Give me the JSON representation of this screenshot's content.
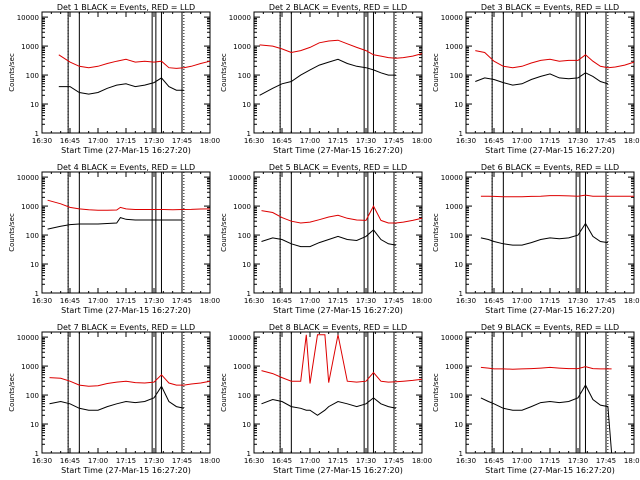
{
  "figure": {
    "xlabel": "Start Time (27-Mar-15 16:27:20)",
    "ylabel": "Counts/sec",
    "x_ticks": [
      "16:30",
      "16:45",
      "17:00",
      "17:15",
      "17:30",
      "17:45",
      "18:00"
    ],
    "y_ticks": [
      "1",
      "10",
      "100",
      "1000",
      "10000"
    ],
    "colors": {
      "events": "#000000",
      "lld": "#dd0000",
      "axes": "#000000"
    }
  },
  "chart_data": [
    {
      "type": "line",
      "title": "Det  1 BLACK = Events, RED = LLD",
      "xlabel": "Start Time (27-Mar-15 16:27:20)",
      "ylabel": "Counts/sec",
      "ylog": true,
      "ylim": [
        1,
        15000
      ],
      "xlim": [
        "16:30",
        "18:00"
      ],
      "x": [
        "16:39",
        "16:45",
        "16:50",
        "16:55",
        "17:00",
        "17:05",
        "17:10",
        "17:15",
        "17:20",
        "17:25",
        "17:30",
        "17:34",
        "17:38",
        "17:42",
        "17:46",
        "17:50",
        "17:55",
        "18:00"
      ],
      "series": [
        {
          "name": "BLACK = Events",
          "values": [
            40,
            40,
            25,
            22,
            25,
            35,
            45,
            50,
            40,
            45,
            55,
            80,
            40,
            30,
            30,
            null,
            null,
            null
          ]
        },
        {
          "name": "RED = LLD",
          "values": [
            500,
            280,
            200,
            180,
            200,
            250,
            300,
            350,
            280,
            300,
            280,
            300,
            180,
            170,
            180,
            200,
            250,
            300
          ]
        }
      ],
      "vlines": [
        "16:44",
        "16:50",
        "17:29",
        "17:31",
        "17:34",
        "17:45"
      ]
    },
    {
      "type": "line",
      "title": "Det  2 BLACK = Events, RED = LLD",
      "xlabel": "Start Time (27-Mar-15 16:27:20)",
      "ylabel": "Counts/sec",
      "ylog": true,
      "ylim": [
        1,
        15000
      ],
      "xlim": [
        "16:30",
        "18:00"
      ],
      "x": [
        "16:33",
        "16:40",
        "16:45",
        "16:50",
        "16:55",
        "17:00",
        "17:05",
        "17:10",
        "17:15",
        "17:20",
        "17:25",
        "17:30",
        "17:34",
        "17:38",
        "17:42",
        "17:46",
        "17:50",
        "17:55",
        "18:00"
      ],
      "series": [
        {
          "name": "BLACK = Events",
          "values": [
            20,
            35,
            50,
            60,
            100,
            150,
            220,
            280,
            350,
            250,
            200,
            180,
            150,
            120,
            100,
            100,
            null,
            null,
            null
          ]
        },
        {
          "name": "RED = LLD",
          "values": [
            1100,
            1000,
            800,
            600,
            700,
            900,
            1300,
            1500,
            1600,
            1200,
            900,
            700,
            500,
            450,
            400,
            380,
            400,
            450,
            550
          ]
        }
      ],
      "vlines": [
        "16:44",
        "16:50",
        "17:29",
        "17:31",
        "17:34",
        "17:45"
      ]
    },
    {
      "type": "line",
      "title": "Det  3 BLACK = Events, RED = LLD",
      "xlabel": "Start Time (27-Mar-15 16:27:20)",
      "ylabel": "Counts/sec",
      "ylog": true,
      "ylim": [
        1,
        15000
      ],
      "xlim": [
        "16:30",
        "18:00"
      ],
      "x": [
        "16:35",
        "16:40",
        "16:45",
        "16:50",
        "16:55",
        "17:00",
        "17:05",
        "17:10",
        "17:15",
        "17:20",
        "17:25",
        "17:30",
        "17:34",
        "17:38",
        "17:42",
        "17:46",
        "17:50",
        "17:55",
        "18:00"
      ],
      "series": [
        {
          "name": "BLACK = Events",
          "values": [
            60,
            80,
            70,
            55,
            45,
            50,
            70,
            90,
            110,
            80,
            75,
            80,
            120,
            90,
            60,
            50,
            null,
            null,
            null
          ]
        },
        {
          "name": "RED = LLD",
          "values": [
            700,
            600,
            300,
            200,
            180,
            200,
            260,
            320,
            350,
            300,
            320,
            320,
            500,
            300,
            200,
            180,
            190,
            220,
            280
          ]
        }
      ],
      "vlines": [
        "16:44",
        "16:50",
        "17:29",
        "17:31",
        "17:34",
        "17:45"
      ]
    },
    {
      "type": "line",
      "title": "Det  4 BLACK = Events, RED = LLD",
      "xlabel": "Start Time (27-Mar-15 16:27:20)",
      "ylabel": "Counts/sec",
      "ylog": true,
      "ylim": [
        1,
        15000
      ],
      "xlim": [
        "16:30",
        "18:00"
      ],
      "x": [
        "16:33",
        "16:40",
        "16:45",
        "16:50",
        "16:55",
        "17:00",
        "17:05",
        "17:10",
        "17:12",
        "17:15",
        "17:20",
        "17:25",
        "17:30",
        "17:35",
        "17:40",
        "17:45",
        "17:50",
        "17:55",
        "18:00"
      ],
      "series": [
        {
          "name": "BLACK = Events",
          "values": [
            160,
            200,
            230,
            240,
            240,
            240,
            250,
            260,
            400,
            350,
            330,
            330,
            330,
            330,
            330,
            330,
            null,
            null,
            null
          ]
        },
        {
          "name": "RED = LLD",
          "values": [
            1600,
            1200,
            900,
            800,
            750,
            720,
            720,
            730,
            900,
            800,
            760,
            760,
            760,
            760,
            750,
            760,
            770,
            790,
            800
          ]
        }
      ],
      "vlines": [
        "16:44",
        "16:50",
        "17:29",
        "17:31",
        "17:34",
        "17:45"
      ]
    },
    {
      "type": "line",
      "title": "Det  5 BLACK = Events, RED = LLD",
      "xlabel": "Start Time (27-Mar-15 16:27:20)",
      "ylabel": "Counts/sec",
      "ylog": true,
      "ylim": [
        1,
        15000
      ],
      "xlim": [
        "16:30",
        "18:00"
      ],
      "x": [
        "16:34",
        "16:40",
        "16:45",
        "16:50",
        "16:55",
        "17:00",
        "17:05",
        "17:10",
        "17:15",
        "17:20",
        "17:25",
        "17:30",
        "17:34",
        "17:38",
        "17:42",
        "17:46",
        "17:50",
        "17:55",
        "18:00"
      ],
      "series": [
        {
          "name": "BLACK = Events",
          "values": [
            60,
            80,
            70,
            50,
            40,
            40,
            55,
            70,
            90,
            70,
            65,
            90,
            150,
            70,
            50,
            45,
            null,
            null,
            null
          ]
        },
        {
          "name": "RED = LLD",
          "values": [
            700,
            600,
            400,
            300,
            260,
            280,
            340,
            420,
            480,
            380,
            330,
            320,
            1000,
            320,
            260,
            260,
            280,
            320,
            380
          ]
        }
      ],
      "vlines": [
        "16:44",
        "16:50",
        "17:29",
        "17:31",
        "17:34",
        "17:45"
      ]
    },
    {
      "type": "line",
      "title": "Det  6 BLACK = Events, RED = LLD",
      "xlabel": "Start Time (27-Mar-15 16:27:20)",
      "ylabel": "Counts/sec",
      "ylog": true,
      "ylim": [
        1,
        15000
      ],
      "xlim": [
        "16:30",
        "18:00"
      ],
      "x": [
        "16:38",
        "16:42",
        "16:45",
        "16:50",
        "16:55",
        "17:00",
        "17:05",
        "17:10",
        "17:15",
        "17:20",
        "17:25",
        "17:30",
        "17:34",
        "17:38",
        "17:42",
        "17:46",
        "17:50",
        "17:55",
        "18:00"
      ],
      "series": [
        {
          "name": "BLACK = Events",
          "values": [
            80,
            70,
            60,
            50,
            45,
            45,
            55,
            70,
            80,
            75,
            80,
            100,
            250,
            90,
            60,
            55,
            null,
            null,
            null
          ]
        },
        {
          "name": "RED = LLD",
          "values": [
            2200,
            2200,
            2150,
            2100,
            2100,
            2100,
            2150,
            2200,
            2300,
            2300,
            2250,
            2200,
            2400,
            2200,
            2200,
            2200,
            2200,
            2200,
            2200
          ]
        }
      ],
      "vlines": [
        "16:44",
        "16:50",
        "17:29",
        "17:31",
        "17:34",
        "17:45"
      ]
    },
    {
      "type": "line",
      "title": "Det  7 BLACK = Events, RED = LLD",
      "xlabel": "Start Time (27-Mar-15 16:27:20)",
      "ylabel": "Counts/sec",
      "ylog": true,
      "ylim": [
        1,
        15000
      ],
      "xlim": [
        "16:30",
        "18:00"
      ],
      "x": [
        "16:34",
        "16:40",
        "16:45",
        "16:50",
        "16:55",
        "17:00",
        "17:05",
        "17:10",
        "17:15",
        "17:20",
        "17:25",
        "17:30",
        "17:34",
        "17:38",
        "17:42",
        "17:46",
        "17:50",
        "17:55",
        "18:00"
      ],
      "series": [
        {
          "name": "BLACK = Events",
          "values": [
            50,
            60,
            50,
            35,
            30,
            30,
            40,
            50,
            60,
            55,
            60,
            80,
            200,
            60,
            40,
            35,
            null,
            null,
            null
          ]
        },
        {
          "name": "RED = LLD",
          "values": [
            400,
            380,
            300,
            220,
            200,
            210,
            250,
            280,
            300,
            270,
            260,
            280,
            500,
            260,
            220,
            220,
            240,
            260,
            300
          ]
        }
      ],
      "vlines": [
        "16:44",
        "16:50",
        "17:29",
        "17:31",
        "17:34",
        "17:45"
      ]
    },
    {
      "type": "line",
      "title": "Det  8 BLACK = Events, RED = LLD",
      "xlabel": "Start Time (27-Mar-15 16:27:20)",
      "ylabel": "Counts/sec",
      "ylog": true,
      "ylim": [
        1,
        15000
      ],
      "xlim": [
        "16:30",
        "18:00"
      ],
      "x": [
        "16:34",
        "16:40",
        "16:45",
        "16:50",
        "16:55",
        "16:58",
        "17:00",
        "17:04",
        "17:08",
        "17:10",
        "17:15",
        "17:20",
        "17:25",
        "17:30",
        "17:34",
        "17:38",
        "17:42",
        "17:46",
        "17:50",
        "17:55",
        "18:00"
      ],
      "series": [
        {
          "name": "BLACK = Events",
          "values": [
            50,
            70,
            60,
            40,
            35,
            30,
            30,
            20,
            30,
            40,
            60,
            50,
            40,
            50,
            80,
            50,
            40,
            35,
            null,
            null,
            null
          ]
        },
        {
          "name": "RED = LLD",
          "values": [
            700,
            550,
            400,
            300,
            300,
            12000,
            250,
            12000,
            12000,
            270,
            12000,
            300,
            280,
            300,
            600,
            300,
            280,
            290,
            300,
            320,
            350
          ]
        }
      ],
      "vlines": [
        "16:44",
        "16:50",
        "17:29",
        "17:31",
        "17:34",
        "17:45"
      ]
    },
    {
      "type": "line",
      "title": "Det  9 BLACK = Events, RED = LLD",
      "xlabel": "Start Time (27-Mar-15 16:27:20)",
      "ylabel": "Counts/sec",
      "ylog": true,
      "ylim": [
        1,
        15000
      ],
      "xlim": [
        "16:30",
        "18:00"
      ],
      "x": [
        "16:38",
        "16:42",
        "16:45",
        "16:50",
        "16:55",
        "17:00",
        "17:05",
        "17:10",
        "17:15",
        "17:20",
        "17:25",
        "17:30",
        "17:34",
        "17:38",
        "17:42",
        "17:46",
        "17:48"
      ],
      "series": [
        {
          "name": "BLACK = Events",
          "values": [
            80,
            60,
            50,
            35,
            30,
            30,
            40,
            55,
            60,
            55,
            60,
            80,
            220,
            70,
            45,
            40,
            1
          ]
        },
        {
          "name": "RED = LLD",
          "values": [
            900,
            850,
            800,
            800,
            780,
            800,
            820,
            850,
            900,
            850,
            820,
            820,
            950,
            820,
            800,
            800,
            800
          ]
        }
      ],
      "vlines": [
        "16:44",
        "16:50",
        "17:29",
        "17:31",
        "17:34",
        "17:45"
      ]
    }
  ]
}
